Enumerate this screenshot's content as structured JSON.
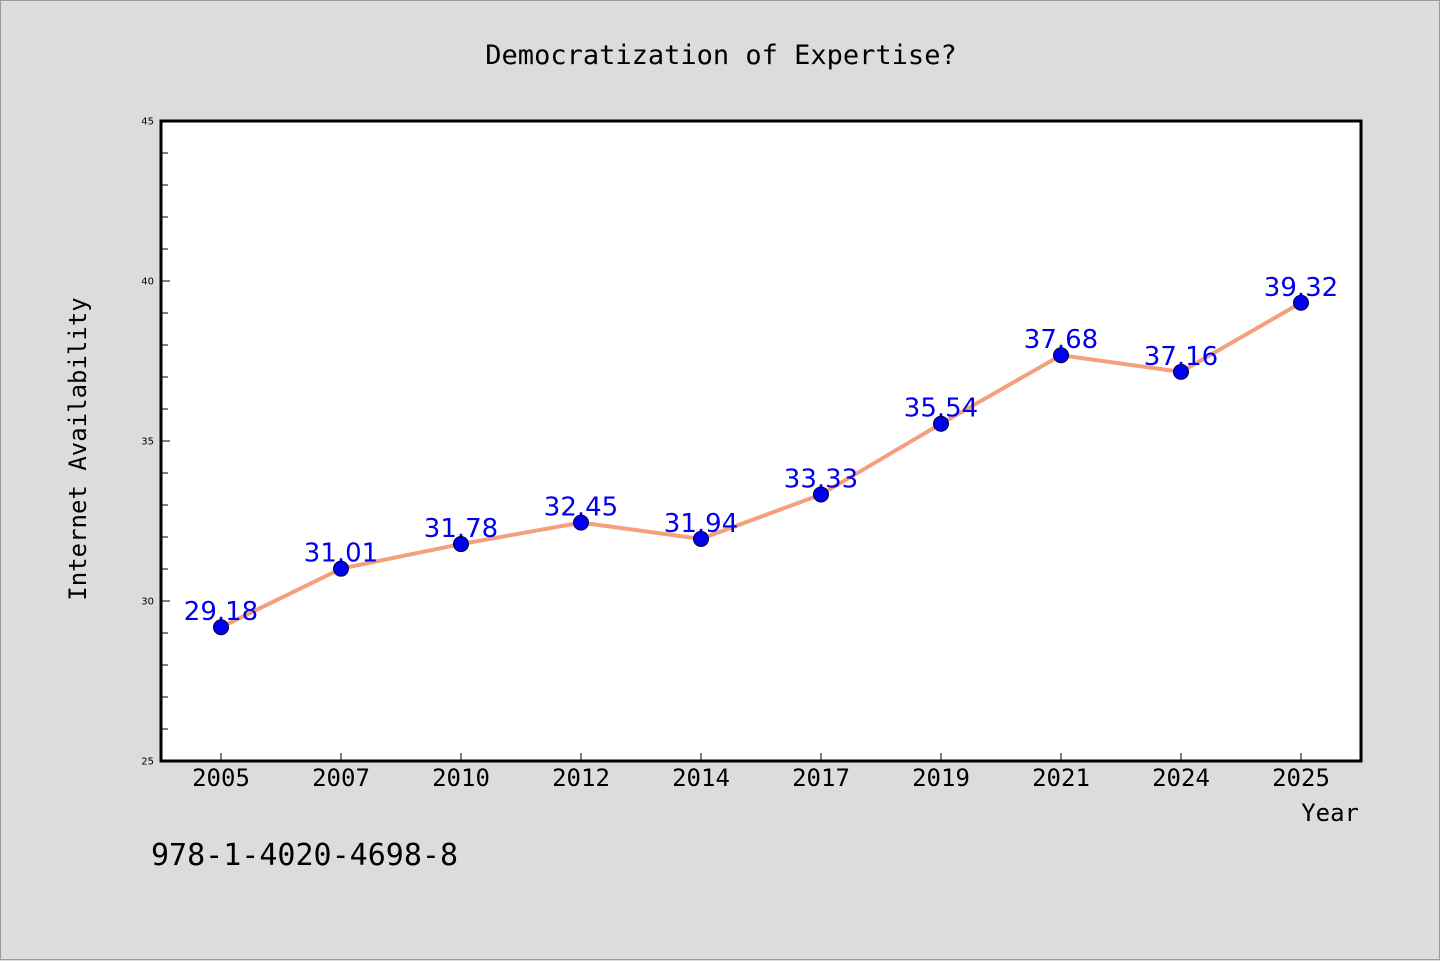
{
  "chart_data": {
    "type": "line",
    "title": "Democratization of Expertise?",
    "xlabel": "Year",
    "ylabel": "Internet Availability",
    "categories": [
      "2005",
      "2007",
      "2010",
      "2012",
      "2014",
      "2017",
      "2019",
      "2021",
      "2024",
      "2025"
    ],
    "series": [
      {
        "values": [
          29.18,
          31.01,
          31.78,
          32.45,
          31.94,
          33.33,
          35.54,
          37.68,
          37.16,
          39.32
        ],
        "line_color": "#f4a07c",
        "marker_color": "#0000ee",
        "label_color": "#0000ee"
      }
    ],
    "ylim": [
      25,
      45
    ],
    "y_major_ticks": [
      25,
      30,
      35,
      40,
      45
    ],
    "y_minor_step": 1,
    "grid": false,
    "legend": "none"
  },
  "footer": {
    "isbn": "978-1-4020-4698-8"
  },
  "colors": {
    "background": "#dcdcdc",
    "plot_area": "#ffffff",
    "axis": "#000000"
  }
}
